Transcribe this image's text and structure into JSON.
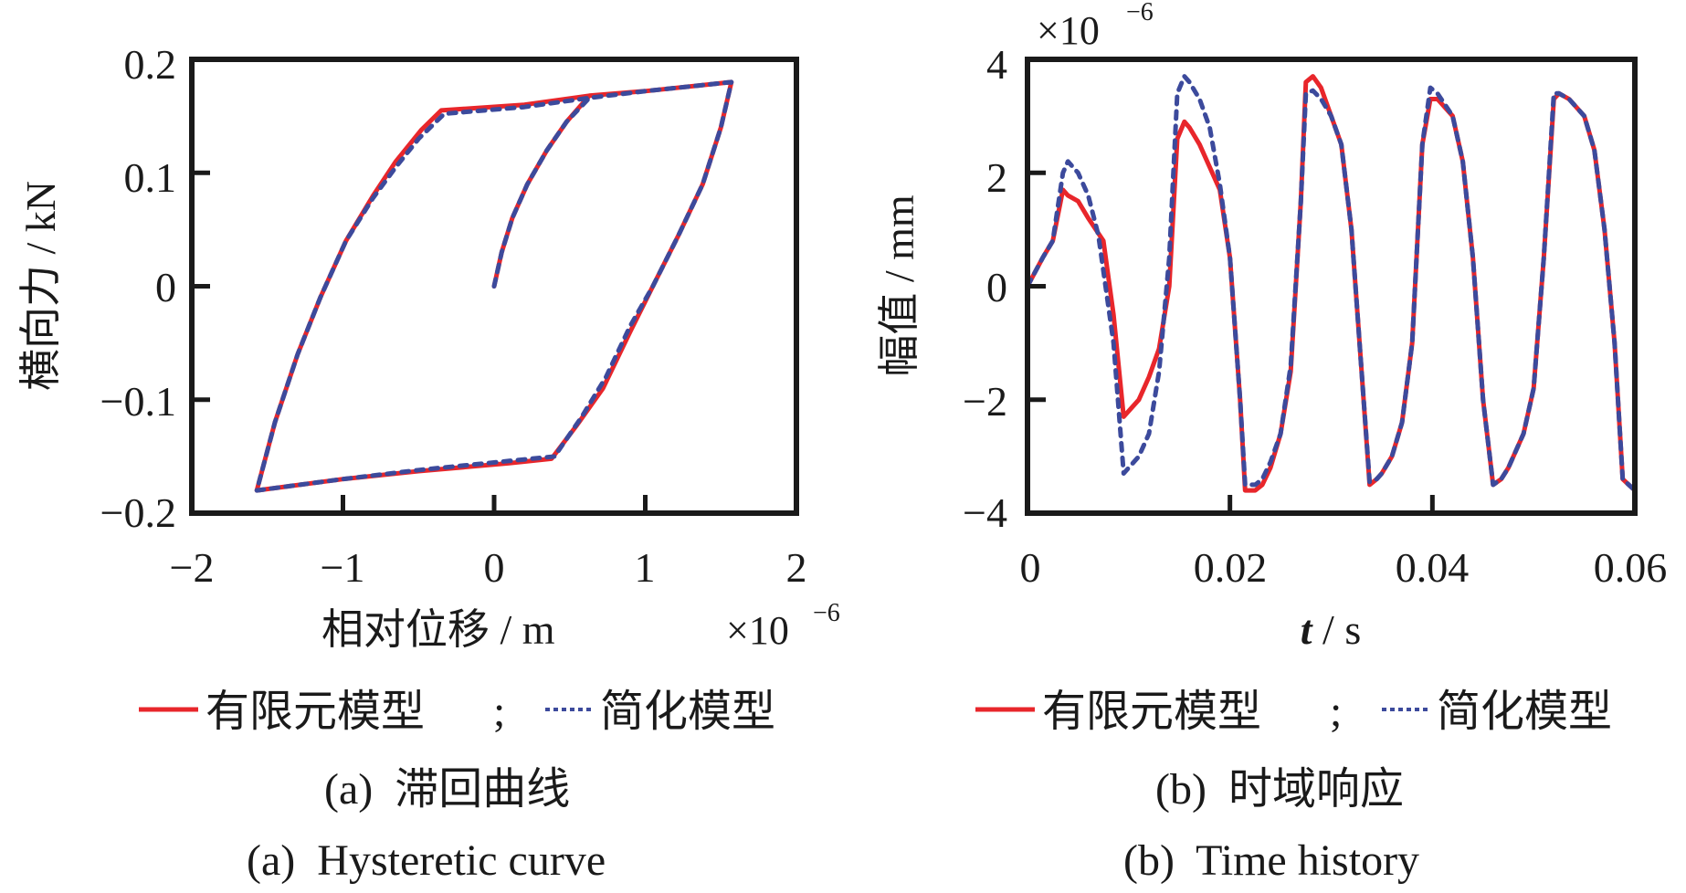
{
  "colors": {
    "fem": "#e8262b",
    "simplified": "#3c4a9c",
    "axis": "#1a1a1a"
  },
  "chart_data": [
    {
      "type": "line",
      "title": "",
      "xlabel": "相对位移 / m",
      "x_multiplier": "×10",
      "x_multiplier_exp": "−6",
      "ylabel": "横向力 / kN",
      "xlim": [
        -2,
        2
      ],
      "ylim": [
        -0.2,
        0.2
      ],
      "xticks": [
        -2,
        -1,
        0,
        1,
        2
      ],
      "xtick_labels": [
        "−2",
        "−1",
        "0",
        "1",
        "2"
      ],
      "yticks": [
        -0.2,
        -0.1,
        0,
        0.1,
        0.2
      ],
      "ytick_labels": [
        "−0.2",
        "−0.1",
        "0",
        "0.1",
        "0.2"
      ],
      "grid": false,
      "legend": {
        "placement": "bottom",
        "separator": ";",
        "entries": [
          "有限元模型",
          "简化模型"
        ]
      },
      "caption_zh": "(a)  滞回曲线",
      "caption_en": "(a)  Hysteretic curve",
      "series": [
        {
          "name": "有限元模型",
          "style": "solid",
          "x": [
            0,
            0.05,
            0.12,
            0.22,
            0.35,
            0.48,
            0.63,
            1.0,
            1.57,
            1.5,
            1.38,
            1.22,
            1.05,
            0.9,
            0.72,
            0.55,
            0.38,
            0.1,
            -0.5,
            -1.0,
            -1.57,
            -1.45,
            -1.3,
            -1.15,
            -0.98,
            -0.8,
            -0.65,
            -0.48,
            -0.35,
            0.2,
            0.63,
            1.0,
            1.57
          ],
          "y": [
            0,
            0.03,
            0.06,
            0.09,
            0.12,
            0.145,
            0.168,
            0.172,
            0.18,
            0.14,
            0.09,
            0.045,
            0.0,
            -0.04,
            -0.09,
            -0.122,
            -0.152,
            -0.156,
            -0.163,
            -0.17,
            -0.18,
            -0.12,
            -0.06,
            -0.01,
            0.04,
            0.08,
            0.11,
            0.138,
            0.155,
            0.16,
            0.168,
            0.172,
            0.18
          ]
        },
        {
          "name": "简化模型",
          "style": "dashed",
          "x": [
            0,
            0.05,
            0.12,
            0.22,
            0.35,
            0.48,
            0.63,
            1.0,
            1.57,
            1.5,
            1.38,
            1.22,
            1.05,
            0.9,
            0.74,
            0.58,
            0.4,
            0.1,
            -0.5,
            -1.0,
            -1.57,
            -1.45,
            -1.3,
            -1.15,
            -0.98,
            -0.8,
            -0.65,
            -0.5,
            -0.33,
            0.2,
            0.63,
            1.0,
            1.57
          ],
          "y": [
            0,
            0.03,
            0.06,
            0.09,
            0.12,
            0.145,
            0.166,
            0.172,
            0.18,
            0.14,
            0.09,
            0.045,
            0.0,
            -0.035,
            -0.08,
            -0.115,
            -0.15,
            -0.154,
            -0.162,
            -0.17,
            -0.18,
            -0.12,
            -0.06,
            -0.01,
            0.04,
            0.078,
            0.105,
            0.13,
            0.152,
            0.158,
            0.166,
            0.172,
            0.18
          ]
        }
      ]
    },
    {
      "type": "line",
      "title": "",
      "xlabel_italic": "t",
      "xlabel": " / s",
      "y_multiplier": "×10",
      "y_multiplier_exp": "−6",
      "ylabel": "幅值 / mm",
      "xlim": [
        0,
        0.06
      ],
      "ylim": [
        -4,
        4
      ],
      "xticks": [
        0,
        0.02,
        0.04,
        0.06
      ],
      "xtick_labels": [
        "0",
        "0.02",
        "0.04",
        "0.06"
      ],
      "yticks": [
        -4,
        -2,
        0,
        2,
        4
      ],
      "ytick_labels": [
        "−4",
        "−2",
        "0",
        "2",
        "4"
      ],
      "grid": false,
      "legend": {
        "placement": "bottom",
        "separator": ";",
        "entries": [
          "有限元模型",
          "简化模型"
        ]
      },
      "caption_zh": "(b)  时域响应",
      "caption_en": "(b)  Time history",
      "series": [
        {
          "name": "有限元模型",
          "style": "solid",
          "x": [
            0,
            0.0015,
            0.0025,
            0.0035,
            0.004,
            0.005,
            0.006,
            0.0075,
            0.0085,
            0.0095,
            0.01,
            0.011,
            0.012,
            0.013,
            0.014,
            0.0148,
            0.0155,
            0.016,
            0.017,
            0.018,
            0.019,
            0.02,
            0.021,
            0.0215,
            0.0225,
            0.0232,
            0.024,
            0.025,
            0.026,
            0.027,
            0.0275,
            0.0282,
            0.029,
            0.03,
            0.031,
            0.032,
            0.033,
            0.0338,
            0.0345,
            0.035,
            0.036,
            0.037,
            0.038,
            0.039,
            0.0398,
            0.0405,
            0.042,
            0.043,
            0.044,
            0.045,
            0.046,
            0.0468,
            0.0475,
            0.049,
            0.05,
            0.051,
            0.052,
            0.0525,
            0.0535,
            0.055,
            0.056,
            0.057,
            0.058,
            0.0588,
            0.06
          ],
          "y": [
            0,
            0.5,
            0.8,
            1.7,
            1.6,
            1.5,
            1.2,
            0.8,
            -0.5,
            -2.3,
            -2.2,
            -2.0,
            -1.6,
            -1.1,
            0.0,
            2.6,
            2.9,
            2.8,
            2.5,
            2.1,
            1.7,
            0.5,
            -2.0,
            -3.6,
            -3.6,
            -3.5,
            -3.2,
            -2.6,
            -1.5,
            1.5,
            3.6,
            3.7,
            3.5,
            3.0,
            2.5,
            1.0,
            -1.5,
            -3.5,
            -3.4,
            -3.3,
            -3.0,
            -2.4,
            -1.0,
            2.5,
            3.3,
            3.3,
            3.0,
            2.2,
            0.5,
            -2.0,
            -3.5,
            -3.4,
            -3.2,
            -2.6,
            -1.8,
            0.5,
            3.3,
            3.4,
            3.3,
            3.0,
            2.4,
            1.0,
            -1.0,
            -3.4,
            -3.6
          ],
          "y_note": "values ×10^-6"
        },
        {
          "name": "简化模型",
          "style": "dashed",
          "x": [
            0,
            0.0015,
            0.0025,
            0.0035,
            0.004,
            0.005,
            0.006,
            0.007,
            0.0085,
            0.0095,
            0.01,
            0.011,
            0.012,
            0.013,
            0.014,
            0.0148,
            0.0155,
            0.016,
            0.017,
            0.018,
            0.019,
            0.02,
            0.021,
            0.0215,
            0.0225,
            0.0232,
            0.024,
            0.025,
            0.026,
            0.027,
            0.0275,
            0.0282,
            0.029,
            0.03,
            0.031,
            0.032,
            0.033,
            0.0338,
            0.0345,
            0.035,
            0.036,
            0.037,
            0.038,
            0.039,
            0.0398,
            0.0405,
            0.042,
            0.043,
            0.044,
            0.045,
            0.046,
            0.0468,
            0.0475,
            0.049,
            0.05,
            0.051,
            0.052,
            0.0525,
            0.0535,
            0.055,
            0.056,
            0.057,
            0.058,
            0.0588,
            0.06
          ],
          "y": [
            0,
            0.5,
            0.8,
            2.0,
            2.2,
            2.0,
            1.6,
            0.9,
            -1.0,
            -3.3,
            -3.2,
            -3.0,
            -2.6,
            -1.5,
            0.5,
            3.4,
            3.7,
            3.6,
            3.3,
            2.8,
            1.8,
            0.5,
            -2.0,
            -3.5,
            -3.5,
            -3.4,
            -3.1,
            -2.6,
            -1.4,
            1.5,
            3.4,
            3.45,
            3.3,
            3.0,
            2.5,
            1.0,
            -1.5,
            -3.45,
            -3.4,
            -3.3,
            -3.0,
            -2.4,
            -1.0,
            2.5,
            3.5,
            3.4,
            3.0,
            2.2,
            0.5,
            -2.0,
            -3.5,
            -3.4,
            -3.2,
            -2.6,
            -1.8,
            0.5,
            3.4,
            3.4,
            3.3,
            3.0,
            2.4,
            1.0,
            -1.0,
            -3.4,
            -3.6
          ],
          "y_note": "values ×10^-6"
        }
      ]
    }
  ]
}
